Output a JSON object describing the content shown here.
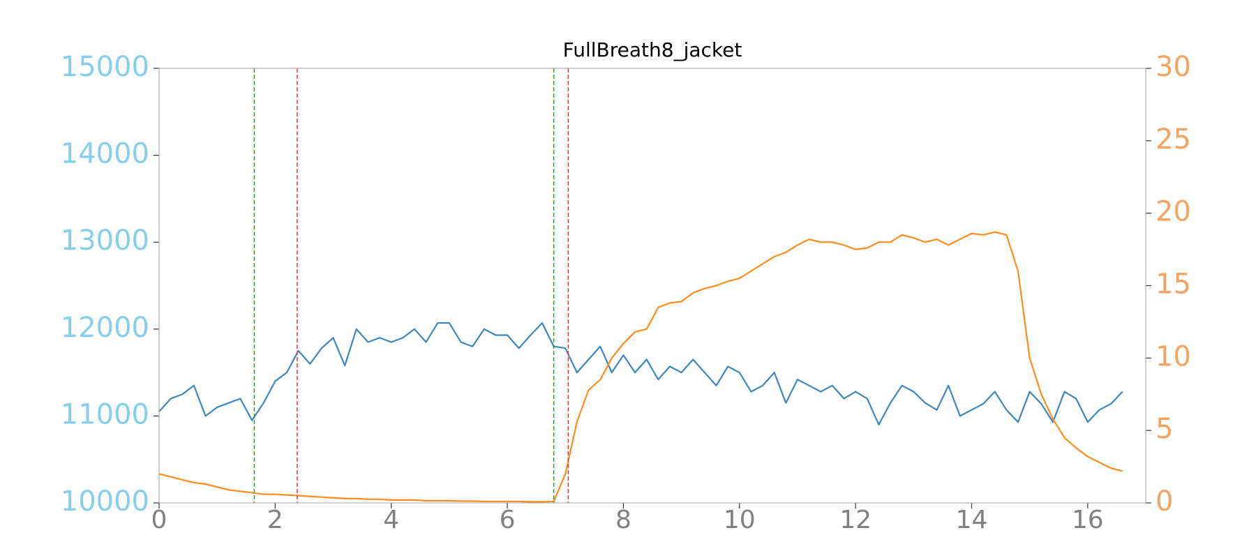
{
  "chart_data": {
    "type": "line",
    "title": "FullBreath8_jacket",
    "x": [
      0,
      0.2,
      0.4,
      0.6,
      0.8,
      1.0,
      1.2,
      1.4,
      1.6,
      1.8,
      2.0,
      2.2,
      2.4,
      2.6,
      2.8,
      3.0,
      3.2,
      3.4,
      3.6,
      3.8,
      4.0,
      4.2,
      4.4,
      4.6,
      4.8,
      5.0,
      5.2,
      5.4,
      5.6,
      5.8,
      6.0,
      6.2,
      6.4,
      6.6,
      6.8,
      7.0,
      7.2,
      7.4,
      7.6,
      7.8,
      8.0,
      8.2,
      8.4,
      8.6,
      8.8,
      9.0,
      9.2,
      9.4,
      9.6,
      9.8,
      10.0,
      10.2,
      10.4,
      10.6,
      10.8,
      11.0,
      11.2,
      11.4,
      11.6,
      11.8,
      12.0,
      12.2,
      12.4,
      12.6,
      12.8,
      13.0,
      13.2,
      13.4,
      13.6,
      13.8,
      14.0,
      14.2,
      14.4,
      14.6,
      14.8,
      15.0,
      15.2,
      15.4,
      15.6,
      15.8,
      16.0,
      16.2,
      16.4,
      16.6
    ],
    "series": [
      {
        "color": "#3a87c0",
        "axis": "y",
        "values": [
          11050,
          11200,
          11250,
          11350,
          11000,
          11100,
          11150,
          11200,
          10950,
          11150,
          11400,
          11500,
          11750,
          11600,
          11780,
          11900,
          11580,
          12000,
          11850,
          11900,
          11850,
          11900,
          12000,
          11850,
          12070,
          12070,
          11850,
          11800,
          12000,
          11930,
          11930,
          11780,
          11930,
          12070,
          11800,
          11780,
          11500,
          11650,
          11800,
          11500,
          11700,
          11500,
          11650,
          11420,
          11570,
          11500,
          11650,
          11500,
          11350,
          11570,
          11500,
          11280,
          11350,
          11500,
          11150,
          11420,
          11350,
          11280,
          11350,
          11200,
          11280,
          11200,
          10900,
          11150,
          11350,
          11280,
          11150,
          11070,
          11350,
          11000,
          11070,
          11140,
          11280,
          11070,
          10930,
          11280,
          11140,
          10930,
          11280,
          11200,
          10930,
          11070,
          11140,
          11280
        ]
      },
      {
        "color": "#ff8c1a",
        "axis": "y2",
        "values": [
          2.0,
          1.8,
          1.6,
          1.4,
          1.3,
          1.1,
          0.9,
          0.8,
          0.7,
          0.6,
          0.6,
          0.55,
          0.5,
          0.45,
          0.4,
          0.35,
          0.3,
          0.3,
          0.25,
          0.25,
          0.2,
          0.2,
          0.2,
          0.15,
          0.15,
          0.15,
          0.12,
          0.12,
          0.1,
          0.1,
          0.1,
          0.1,
          0.08,
          0.08,
          0.1,
          2.0,
          5.6,
          7.8,
          8.5,
          10.0,
          11.0,
          11.8,
          12.0,
          13.5,
          13.8,
          13.9,
          14.5,
          14.8,
          15.0,
          15.3,
          15.5,
          16.0,
          16.5,
          17.0,
          17.3,
          17.8,
          18.2,
          18.0,
          18.0,
          17.8,
          17.5,
          17.6,
          18.0,
          18.0,
          18.5,
          18.3,
          18.0,
          18.2,
          17.8,
          18.2,
          18.6,
          18.5,
          18.7,
          18.5,
          16.0,
          10.0,
          7.5,
          5.8,
          4.5,
          3.8,
          3.2,
          2.8,
          2.4,
          2.2
        ]
      }
    ],
    "vlines": [
      {
        "x": 1.64,
        "color": "#2ca02c"
      },
      {
        "x": 2.38,
        "color": "#e8393a"
      },
      {
        "x": 6.8,
        "color": "#2ca02c"
      },
      {
        "x": 7.05,
        "color": "#e8393a"
      }
    ],
    "xlim": [
      0,
      17
    ],
    "xticks": [
      0,
      2,
      4,
      6,
      8,
      10,
      12,
      14,
      16
    ],
    "ylim": [
      10000,
      15000
    ],
    "yticks": [
      10000,
      11000,
      12000,
      13000,
      14000,
      15000
    ],
    "y2lim": [
      0,
      30
    ],
    "y2ticks": [
      0,
      5,
      10,
      15,
      20,
      25,
      30
    ],
    "xtick_color": "#808080",
    "ytick_color": "#87ceeb",
    "y2tick_color": "#f4a460"
  }
}
